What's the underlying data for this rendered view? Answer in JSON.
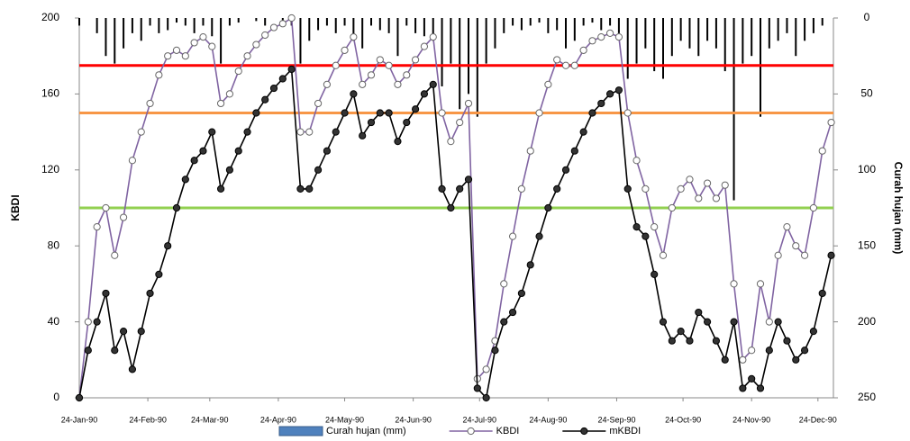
{
  "chart_data": {
    "type": "line",
    "y_axis_label": "KBDI",
    "y2_axis_label": "Curah hujan (mm)",
    "x": [
      "1990-01-24",
      "1990-01-28",
      "1990-02-01",
      "1990-02-05",
      "1990-02-09",
      "1990-02-13",
      "1990-02-17",
      "1990-02-21",
      "1990-02-25",
      "1990-03-01",
      "1990-03-05",
      "1990-03-09",
      "1990-03-13",
      "1990-03-17",
      "1990-03-21",
      "1990-03-25",
      "1990-03-29",
      "1990-04-02",
      "1990-04-06",
      "1990-04-10",
      "1990-04-14",
      "1990-04-18",
      "1990-04-22",
      "1990-04-26",
      "1990-04-30",
      "1990-05-04",
      "1990-05-08",
      "1990-05-12",
      "1990-05-16",
      "1990-05-20",
      "1990-05-24",
      "1990-05-28",
      "1990-06-01",
      "1990-06-05",
      "1990-06-09",
      "1990-06-13",
      "1990-06-17",
      "1990-06-21",
      "1990-06-25",
      "1990-06-29",
      "1990-07-03",
      "1990-07-07",
      "1990-07-11",
      "1990-07-15",
      "1990-07-19",
      "1990-07-23",
      "1990-07-27",
      "1990-07-31",
      "1990-08-04",
      "1990-08-08",
      "1990-08-12",
      "1990-08-16",
      "1990-08-20",
      "1990-08-24",
      "1990-08-28",
      "1990-09-01",
      "1990-09-05",
      "1990-09-09",
      "1990-09-13",
      "1990-09-17",
      "1990-09-21",
      "1990-09-25",
      "1990-09-29",
      "1990-10-03",
      "1990-10-07",
      "1990-10-11",
      "1990-10-15",
      "1990-10-19",
      "1990-10-23",
      "1990-10-27",
      "1990-10-31",
      "1990-11-04",
      "1990-11-08",
      "1990-11-12",
      "1990-11-16",
      "1990-11-20",
      "1990-11-24",
      "1990-11-28",
      "1990-12-02",
      "1990-12-06",
      "1990-12-10",
      "1990-12-14",
      "1990-12-18",
      "1990-12-22",
      "1990-12-26",
      "1990-12-30"
    ],
    "series": [
      {
        "name": "Curah hujan (mm)",
        "kind": "bar",
        "axis": "y2",
        "color": "#000000",
        "legend_color": "#4f81bd",
        "values": [
          5,
          0,
          10,
          25,
          30,
          20,
          10,
          15,
          5,
          10,
          8,
          3,
          5,
          10,
          5,
          12,
          30,
          5,
          3,
          0,
          2,
          5,
          0,
          3,
          5,
          30,
          15,
          8,
          5,
          10,
          5,
          15,
          20,
          5,
          8,
          10,
          25,
          5,
          10,
          12,
          15,
          45,
          30,
          60,
          50,
          65,
          30,
          20,
          10,
          5,
          8,
          5,
          3,
          10,
          8,
          20,
          15,
          5,
          3,
          8,
          5,
          10,
          40,
          30,
          20,
          35,
          40,
          25,
          15,
          20,
          25,
          15,
          20,
          35,
          120,
          30,
          25,
          65,
          20,
          15,
          10,
          25,
          15,
          10,
          5,
          0
        ]
      },
      {
        "name": "KBDI",
        "kind": "line",
        "color": "#8064a2",
        "marker_fill": "#ffffff",
        "marker_stroke": "#666666",
        "values": [
          0,
          40,
          90,
          100,
          75,
          95,
          125,
          140,
          155,
          170,
          180,
          183,
          180,
          187,
          190,
          185,
          155,
          160,
          172,
          180,
          186,
          191,
          195,
          197,
          200,
          140,
          140,
          155,
          165,
          175,
          183,
          190,
          165,
          170,
          178,
          175,
          165,
          170,
          178,
          185,
          190,
          150,
          135,
          145,
          155,
          10,
          15,
          30,
          60,
          85,
          110,
          130,
          150,
          165,
          178,
          175,
          175,
          183,
          188,
          190,
          192,
          190,
          150,
          125,
          110,
          90,
          75,
          100,
          110,
          115,
          105,
          113,
          105,
          112,
          60,
          20,
          25,
          60,
          40,
          75,
          90,
          80,
          75,
          100,
          130,
          145
        ]
      },
      {
        "name": "mKBDI",
        "kind": "line",
        "color": "#000000",
        "marker_fill": "#333333",
        "marker_stroke": "#000000",
        "values": [
          0,
          25,
          40,
          55,
          25,
          35,
          15,
          35,
          55,
          65,
          80,
          100,
          115,
          125,
          130,
          140,
          110,
          120,
          130,
          140,
          150,
          157,
          163,
          168,
          173,
          110,
          110,
          120,
          130,
          140,
          150,
          160,
          138,
          145,
          150,
          150,
          135,
          145,
          152,
          160,
          165,
          110,
          100,
          110,
          115,
          5,
          0,
          25,
          40,
          45,
          55,
          70,
          85,
          100,
          110,
          120,
          130,
          140,
          150,
          155,
          160,
          162,
          110,
          90,
          85,
          65,
          40,
          30,
          35,
          30,
          45,
          40,
          30,
          20,
          40,
          5,
          10,
          5,
          25,
          40,
          30,
          20,
          25,
          35,
          55,
          75
        ]
      }
    ],
    "reference_lines": [
      {
        "value": 175,
        "color": "#ff0000"
      },
      {
        "value": 150,
        "color": "#f79646"
      },
      {
        "value": 100,
        "color": "#92d050"
      }
    ],
    "xlim": [
      "1990-01-24",
      "1990-12-31"
    ],
    "xticks": [
      {
        "value": "1990-01-24",
        "label": "24-Jan-90"
      },
      {
        "value": "1990-02-24",
        "label": "24-Feb-90"
      },
      {
        "value": "1990-03-24",
        "label": "24-Mar-90"
      },
      {
        "value": "1990-04-24",
        "label": "24-Apr-90"
      },
      {
        "value": "1990-05-24",
        "label": "24-May-90"
      },
      {
        "value": "1990-06-24",
        "label": "24-Jun-90"
      },
      {
        "value": "1990-07-24",
        "label": "24-Jul-90"
      },
      {
        "value": "1990-08-24",
        "label": "24-Aug-90"
      },
      {
        "value": "1990-09-24",
        "label": "24-Sep-90"
      },
      {
        "value": "1990-10-24",
        "label": "24-Oct-90"
      },
      {
        "value": "1990-11-24",
        "label": "24-Nov-90"
      },
      {
        "value": "1990-12-24",
        "label": "24-Dec-90"
      }
    ],
    "ylim": [
      0,
      200
    ],
    "yticks": [
      0,
      40,
      80,
      120,
      160,
      200
    ],
    "y2lim": [
      0,
      250
    ],
    "y2ticks": [
      0,
      50,
      100,
      150,
      200,
      250
    ],
    "y2_reversed": true,
    "grid": false,
    "legend": "bottom"
  }
}
